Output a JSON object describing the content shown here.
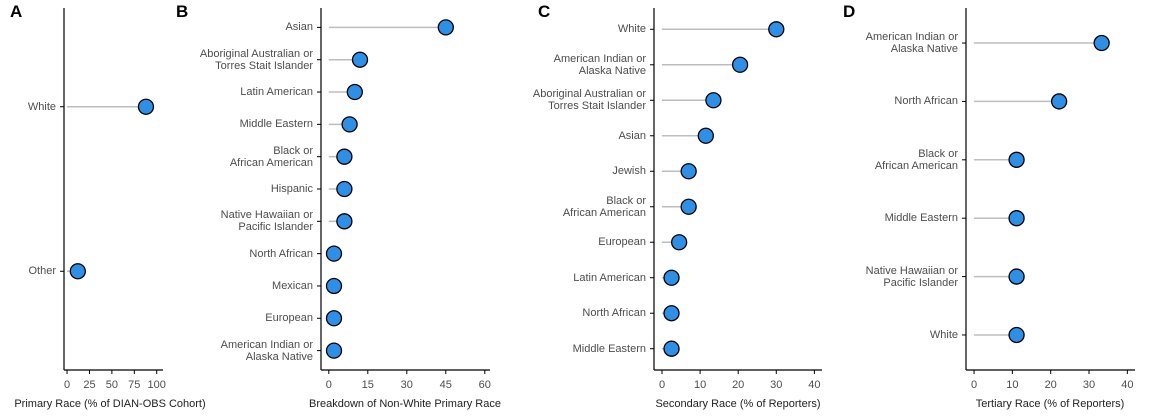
{
  "chart_data": [
    {
      "type": "lollipop",
      "panel_label": "A",
      "x_label": "Primary Race (% of DIAN-OBS Cohort)",
      "categories": [
        "White",
        "Other"
      ],
      "values": [
        88,
        12
      ],
      "color": "#2e8fe6",
      "xlim": [
        -3.4,
        107
      ],
      "xticks": [
        0,
        25,
        50,
        75,
        100
      ]
    },
    {
      "type": "lollipop",
      "panel_label": "B",
      "x_label": "Breakdown of Non-White Primary Race",
      "categories": [
        "Asian",
        "Aboriginal Australian or\nTorres Stait Islander",
        "Latin American",
        "Middle Eastern",
        "Black or\nAfrican American",
        "Hispanic",
        "Native Hawaiian or\nPacific Islander",
        "North African",
        "Mexican",
        "European",
        "American Indian or\nAlaska Native"
      ],
      "values": [
        45,
        12,
        10,
        8,
        6,
        6,
        6,
        2,
        2,
        2,
        2
      ],
      "color": "#2e8fe6",
      "xlim": [
        -3,
        62
      ],
      "xticks": [
        0,
        15,
        30,
        45,
        60
      ]
    },
    {
      "type": "lollipop",
      "panel_label": "C",
      "x_label": "Secondary Race (% of Reporters)",
      "categories": [
        "White",
        "American Indian or\nAlaska Native",
        "Aboriginal Australian or\nTorres Stait Islander",
        "Asian",
        "Jewish",
        "Black or\nAfrican American",
        "European",
        "Latin American",
        "North African",
        "Middle Eastern"
      ],
      "values": [
        30,
        20.5,
        13.5,
        11.5,
        7,
        7,
        4.5,
        2.5,
        2.5,
        2.5
      ],
      "color": "#2e8fe6",
      "xlim": [
        -2.1,
        42
      ],
      "xticks": [
        0,
        10,
        20,
        30,
        40
      ]
    },
    {
      "type": "lollipop",
      "panel_label": "D",
      "x_label": "Tertiary Race (% of Reporters)",
      "categories": [
        "American Indian or\nAlaska Native",
        "North African",
        "Black or\nAfrican American",
        "Middle Eastern",
        "Native Hawaiian or\nPacific Islander",
        "White"
      ],
      "values": [
        33.3,
        22.2,
        11.1,
        11.1,
        11.1,
        11.1
      ],
      "color": "#2e8fe6",
      "xlim": [
        -2.1,
        42
      ],
      "xticks": [
        0,
        10,
        20,
        30,
        40
      ]
    }
  ]
}
